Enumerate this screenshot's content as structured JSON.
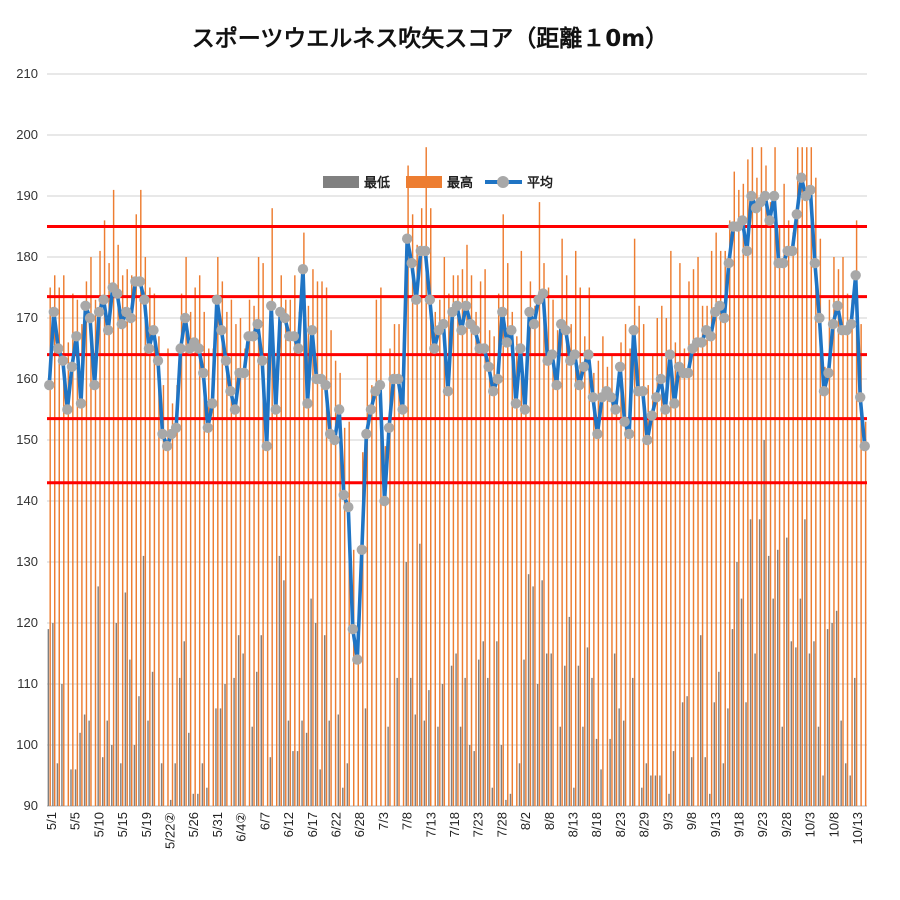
{
  "chart_data": {
    "type": "bar",
    "title": "スポーツウエルネス吹矢スコア（距離１0m）",
    "xlabel": "",
    "ylabel": "",
    "ylim": [
      90,
      210
    ],
    "yticks": [
      90,
      100,
      110,
      120,
      130,
      140,
      150,
      160,
      170,
      180,
      190,
      200,
      210
    ],
    "grid": true,
    "legend_position": "top-center",
    "x_tick_labels": [
      "5/1",
      "5/5",
      "5/10",
      "5/15",
      "5/19",
      "5/22②",
      "5/26",
      "5/31",
      "6/4②",
      "6/7",
      "6/12",
      "6/17",
      "6/22",
      "6/28",
      "7/3",
      "7/8",
      "7/13",
      "7/18",
      "7/23",
      "7/28",
      "8/2",
      "8/8",
      "8/13",
      "8/18",
      "8/23",
      "8/29",
      "9/3",
      "9/8",
      "9/13",
      "9/18",
      "9/23",
      "9/28",
      "10/3",
      "10/8",
      "10/13"
    ],
    "reference_lines": [
      185,
      173.5,
      164,
      153.5,
      143
    ],
    "colors": {
      "min": "#808080",
      "max": "#ED7D31",
      "avg": "#1F74C4",
      "marker": "#A8A8A8",
      "ref": "#FF0000",
      "grid": "#D9D9D9"
    },
    "series": [
      {
        "name": "最低",
        "type": "bar",
        "values": []
      },
      {
        "name": "最高",
        "type": "bar",
        "values": []
      },
      {
        "name": "平均",
        "type": "line",
        "values": [
          159,
          171,
          165,
          163,
          155,
          162,
          167,
          156,
          172,
          170,
          159,
          171,
          173,
          168,
          175,
          174,
          169,
          171,
          170,
          176,
          176,
          173,
          165,
          168,
          163,
          151,
          149,
          151,
          152,
          165,
          170,
          165,
          166,
          165,
          161,
          152,
          156,
          173,
          168,
          163,
          158,
          155,
          161,
          161,
          167,
          167,
          169,
          163,
          149,
          172,
          155,
          171,
          170,
          167,
          167,
          165,
          178,
          156,
          168,
          160,
          160,
          159,
          151,
          150,
          155,
          141,
          139,
          119,
          114,
          132,
          151,
          155,
          158,
          159,
          140,
          152,
          160,
          160,
          155,
          183,
          179,
          173,
          181,
          181,
          173,
          165,
          168,
          169,
          158,
          171,
          172,
          168,
          172,
          169,
          168,
          165,
          165,
          162,
          158,
          160,
          171,
          166,
          168,
          156,
          165,
          155,
          171,
          169,
          173,
          174,
          163,
          164,
          159,
          169,
          168,
          163,
          164,
          159,
          162,
          164,
          157,
          151,
          157,
          158,
          157,
          155,
          162,
          153,
          151,
          168,
          158,
          158,
          150,
          154,
          157,
          160,
          155,
          164,
          156,
          162,
          161,
          161,
          165,
          166,
          166,
          168,
          167,
          171,
          172,
          170,
          179,
          185,
          185,
          186,
          181,
          190,
          188,
          189,
          190,
          186,
          190,
          179,
          179,
          181,
          181,
          187,
          193,
          190,
          191,
          179,
          170,
          158,
          161,
          169,
          172,
          168,
          168,
          169,
          177,
          157,
          149
        ]
      }
    ]
  }
}
